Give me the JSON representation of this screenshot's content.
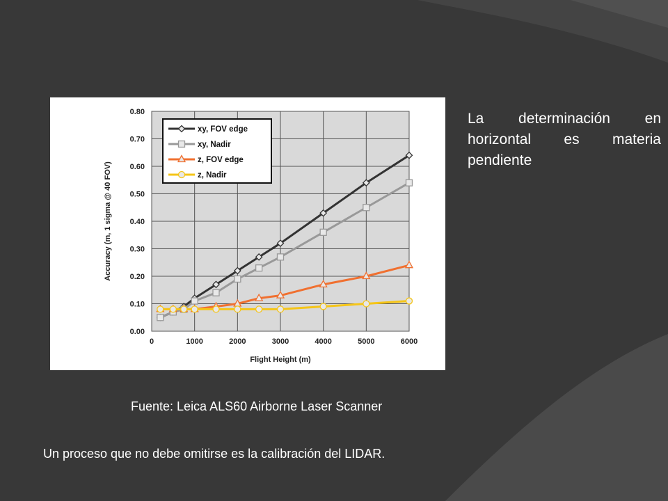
{
  "slide": {
    "side_text": "La determinación en horizontal es materia pendiente",
    "source_text": "Fuente: Leica ALS60 Airborne Laser Scanner",
    "bottom_text": "Un proceso que no debe omitirse es la calibración del LIDAR."
  },
  "chart_data": {
    "type": "line",
    "title": "",
    "xlabel": "Flight Height (m)",
    "ylabel": "Accuracy (m, 1 sigma @ 40 FOV)",
    "xlim": [
      0,
      6000
    ],
    "ylim": [
      0,
      0.8
    ],
    "xticks": [
      "0",
      "1000",
      "2000",
      "3000",
      "4000",
      "5000",
      "6000"
    ],
    "yticks": [
      "0.00",
      "0.10",
      "0.20",
      "0.30",
      "0.40",
      "0.50",
      "0.60",
      "0.70",
      "0.80"
    ],
    "grid": true,
    "legend_position": "top-left",
    "series": [
      {
        "name": "xy, FOV edge",
        "color": "#333333",
        "marker": "diamond",
        "x": [
          200,
          500,
          750,
          1000,
          1500,
          2000,
          2500,
          3000,
          4000,
          5000,
          6000
        ],
        "y": [
          0.05,
          0.07,
          0.09,
          0.12,
          0.17,
          0.22,
          0.27,
          0.32,
          0.43,
          0.54,
          0.64
        ]
      },
      {
        "name": "xy, Nadir",
        "color": "#999999",
        "marker": "square",
        "x": [
          200,
          500,
          750,
          1000,
          1500,
          2000,
          2500,
          3000,
          4000,
          5000,
          6000
        ],
        "y": [
          0.05,
          0.07,
          0.08,
          0.11,
          0.14,
          0.19,
          0.23,
          0.27,
          0.36,
          0.45,
          0.54
        ]
      },
      {
        "name": "z, FOV edge",
        "color": "#f07030",
        "marker": "triangle",
        "x": [
          200,
          500,
          750,
          1000,
          1500,
          2000,
          2500,
          3000,
          4000,
          5000,
          6000
        ],
        "y": [
          0.08,
          0.08,
          0.08,
          0.08,
          0.09,
          0.1,
          0.12,
          0.13,
          0.17,
          0.2,
          0.24
        ]
      },
      {
        "name": "z, Nadir",
        "color": "#f5c518",
        "marker": "circle",
        "x": [
          200,
          500,
          750,
          1000,
          1500,
          2000,
          2500,
          3000,
          4000,
          5000,
          6000
        ],
        "y": [
          0.08,
          0.08,
          0.08,
          0.08,
          0.08,
          0.08,
          0.08,
          0.08,
          0.09,
          0.1,
          0.11
        ]
      }
    ]
  }
}
